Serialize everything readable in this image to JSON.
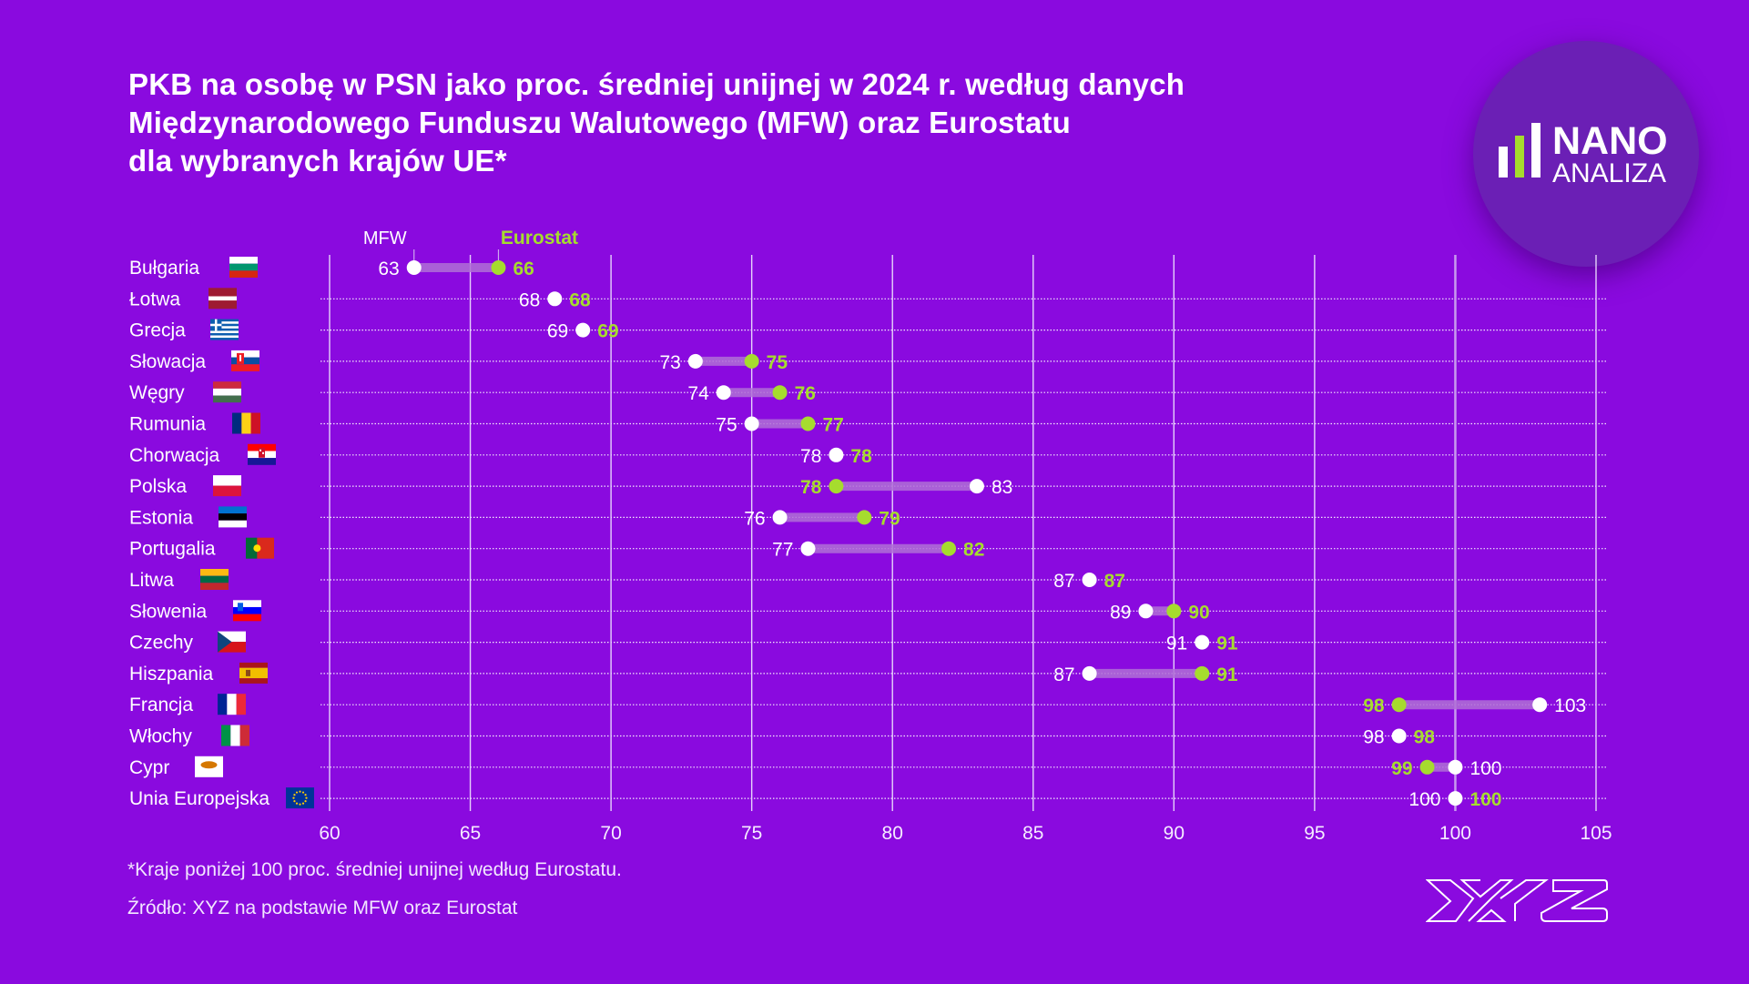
{
  "title_lines": [
    "PKB na osobę w PSN jako proc. średniej unijnej w 2024 r. według danych",
    "Międzynarodowego Funduszu Walutowego (MFW) oraz Eurostatu",
    "dla wybranych krajów UE*"
  ],
  "logo": {
    "line1": "NANO",
    "line2": "ANALIZA",
    "accent_color": "#a6dc2e"
  },
  "brand_logo": "XYZ",
  "footnote": "*Kraje poniżej 100 proc. średniej unijnej według Eurostatu.",
  "source": "Źródło: XYZ na podstawie MFW oraz Eurostat",
  "colors": {
    "background": "#8a0adf",
    "mfw": "#ffffff",
    "eurostat": "#a6dc2e",
    "connector": "#b06fd6"
  },
  "chart_data": {
    "type": "dumbbell",
    "title": "PKB na osobę w PSN jako proc. średniej unijnej w 2024 r. według danych Międzynarodowego Funduszu Walutowego (MFW) oraz Eurostatu dla wybranych krajów UE*",
    "xlabel": "",
    "ylabel": "",
    "xlim": [
      60,
      105
    ],
    "xticks": [
      60,
      65,
      70,
      75,
      80,
      85,
      90,
      95,
      100,
      105
    ],
    "grid": true,
    "legend": [
      "MFW",
      "Eurostat"
    ],
    "legend_placement": "top-left",
    "categories": [
      "Bułgaria",
      "Łotwa",
      "Grecja",
      "Słowacja",
      "Węgry",
      "Rumunia",
      "Chorwacja",
      "Polska",
      "Estonia",
      "Portugalia",
      "Litwa",
      "Słowenia",
      "Czechy",
      "Hiszpania",
      "Francja",
      "Włochy",
      "Cypr",
      "Unia Europejska"
    ],
    "flags": [
      "bg",
      "lv",
      "gr",
      "sk",
      "hu",
      "ro",
      "hr",
      "pl",
      "ee",
      "pt",
      "lt",
      "si",
      "cz",
      "es",
      "fr",
      "it",
      "cy",
      "eu"
    ],
    "series": [
      {
        "name": "MFW",
        "values": [
          63,
          68,
          69,
          73,
          74,
          75,
          78,
          83,
          76,
          77,
          87,
          89,
          91,
          87,
          103,
          98,
          100,
          100
        ]
      },
      {
        "name": "Eurostat",
        "values": [
          66,
          68,
          69,
          75,
          76,
          77,
          78,
          78,
          79,
          82,
          87,
          90,
          91,
          91,
          98,
          98,
          99,
          100
        ]
      }
    ]
  }
}
